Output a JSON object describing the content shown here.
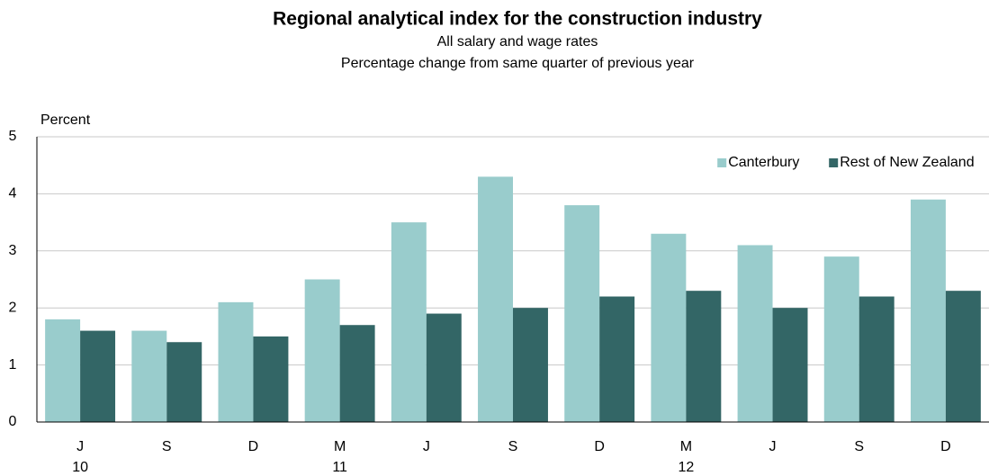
{
  "chart_data": {
    "type": "bar",
    "title": "Regional analytical  index for the construction industry",
    "subtitle": "All salary and wage rates",
    "subtitle2": "Percentage change from same quarter of previous year",
    "y_label": "Percent",
    "categories": [
      "J",
      "S",
      "D",
      "M",
      "J",
      "S",
      "D",
      "M",
      "J",
      "S",
      "D"
    ],
    "category_years": [
      "10",
      null,
      null,
      "11",
      null,
      null,
      null,
      "12",
      null,
      null,
      null
    ],
    "series": [
      {
        "name": "Canterbury",
        "color": "#99cccc",
        "values": [
          1.8,
          1.6,
          2.1,
          2.5,
          3.5,
          4.3,
          3.8,
          3.3,
          3.1,
          2.9,
          3.9
        ]
      },
      {
        "name": "Rest of New Zealand",
        "color": "#336666",
        "values": [
          1.6,
          1.4,
          1.5,
          1.7,
          1.9,
          2.0,
          2.2,
          2.3,
          2.0,
          2.2,
          2.3
        ]
      }
    ],
    "ylim": [
      0,
      5
    ],
    "yticks": [
      0,
      1,
      2,
      3,
      4,
      5
    ],
    "grid": true,
    "legend": "upper right"
  }
}
